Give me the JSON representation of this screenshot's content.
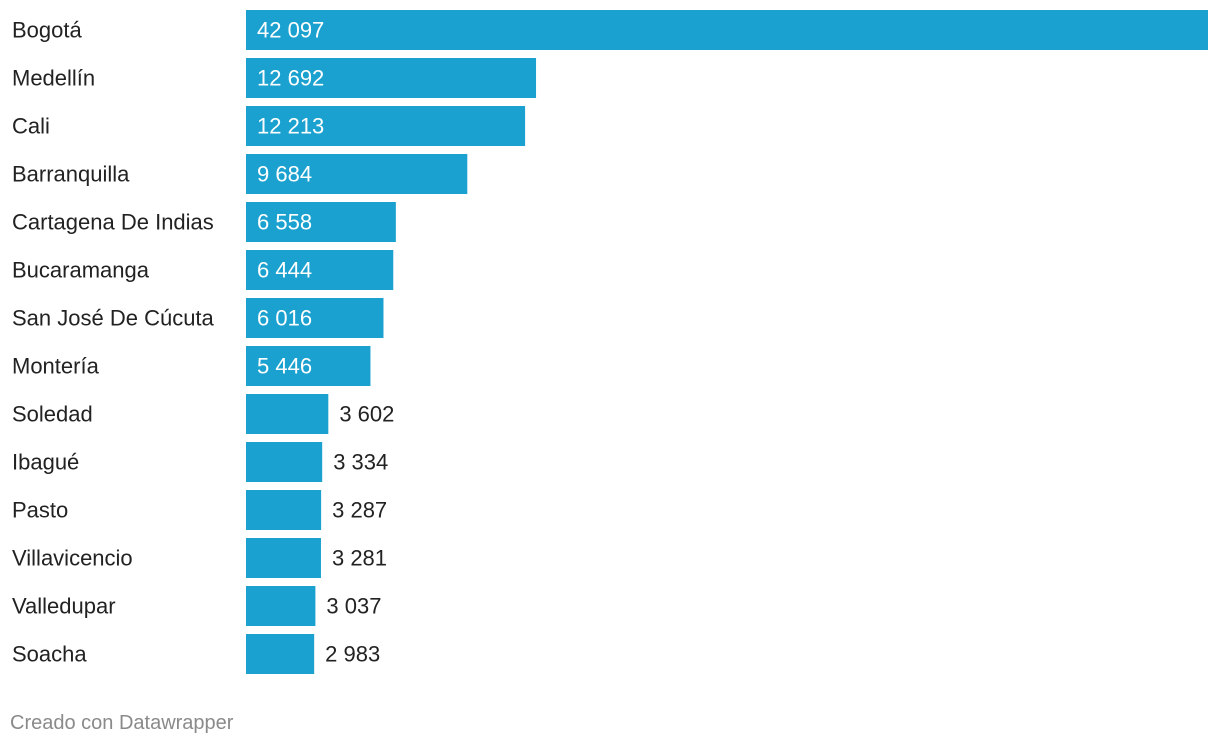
{
  "chart_data": {
    "type": "bar",
    "orientation": "horizontal",
    "categories": [
      "Bogotá",
      "Medellín",
      "Cali",
      "Barranquilla",
      "Cartagena De Indias",
      "Bucaramanga",
      "San José De Cúcuta",
      "Montería",
      "Soledad",
      "Ibagué",
      "Pasto",
      "Villavicencio",
      "Valledupar",
      "Soacha"
    ],
    "values": [
      42097,
      12692,
      12213,
      9684,
      6558,
      6444,
      6016,
      5446,
      3602,
      3334,
      3287,
      3281,
      3037,
      2983
    ],
    "value_labels": [
      "42 097",
      "12 692",
      "12 213",
      "9 684",
      "6 558",
      "6 444",
      "6 016",
      "5 446",
      "3 602",
      "3 334",
      "3 287",
      "3 281",
      "3 037",
      "2 983"
    ],
    "bar_color": "#1ba1cf",
    "xlim": [
      0,
      42097
    ],
    "grid": false,
    "title": "",
    "xlabel": "",
    "ylabel": ""
  },
  "footer": {
    "credit": "Creado con Datawrapper"
  }
}
